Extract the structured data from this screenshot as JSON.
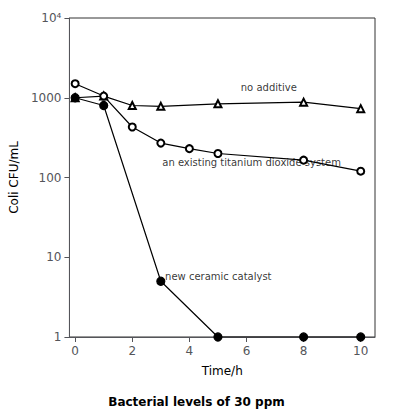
{
  "chart_data": {
    "type": "line",
    "title": "Bacterial levels of 30 ppm",
    "xlabel": "Time/h",
    "ylabel": "Coli CFU/mL",
    "log": "y",
    "grid": false,
    "xlim": [
      -0.2,
      10.5
    ],
    "xticks": [
      0,
      2,
      4,
      6,
      8,
      10
    ],
    "ylim": [
      1,
      10000
    ],
    "yticks": [
      1,
      10,
      100,
      1000,
      {
        "value": 10000,
        "label": "10⁴"
      }
    ],
    "series": [
      {
        "color": "#000000",
        "marker": "triangle-open",
        "line_style": "solid",
        "x": [
          0,
          1,
          2,
          3,
          5,
          8,
          10
        ],
        "values": [
          1000,
          1050,
          800,
          780,
          840,
          880,
          730
        ]
      },
      {
        "color": "#000000",
        "marker": "circle-open",
        "line_style": "solid",
        "x": [
          0,
          1,
          2,
          3,
          4,
          5,
          8,
          10
        ],
        "values": [
          1500,
          1050,
          430,
          270,
          230,
          200,
          165,
          120
        ]
      },
      {
        "color": "#000000",
        "marker": "circle",
        "line_style": "solid",
        "x": [
          0,
          1,
          3,
          5,
          8,
          10
        ],
        "values": [
          1000,
          800,
          5,
          1,
          1,
          1
        ]
      }
    ],
    "annotations": [
      {
        "x": 5.8,
        "y": 1150,
        "text": "no additive"
      },
      {
        "x": 3.05,
        "y": 155,
        "text": "an existing titanium dioxide system"
      },
      {
        "x": 3.15,
        "y": 5.0,
        "text": "new ceramic catalyst"
      }
    ]
  }
}
